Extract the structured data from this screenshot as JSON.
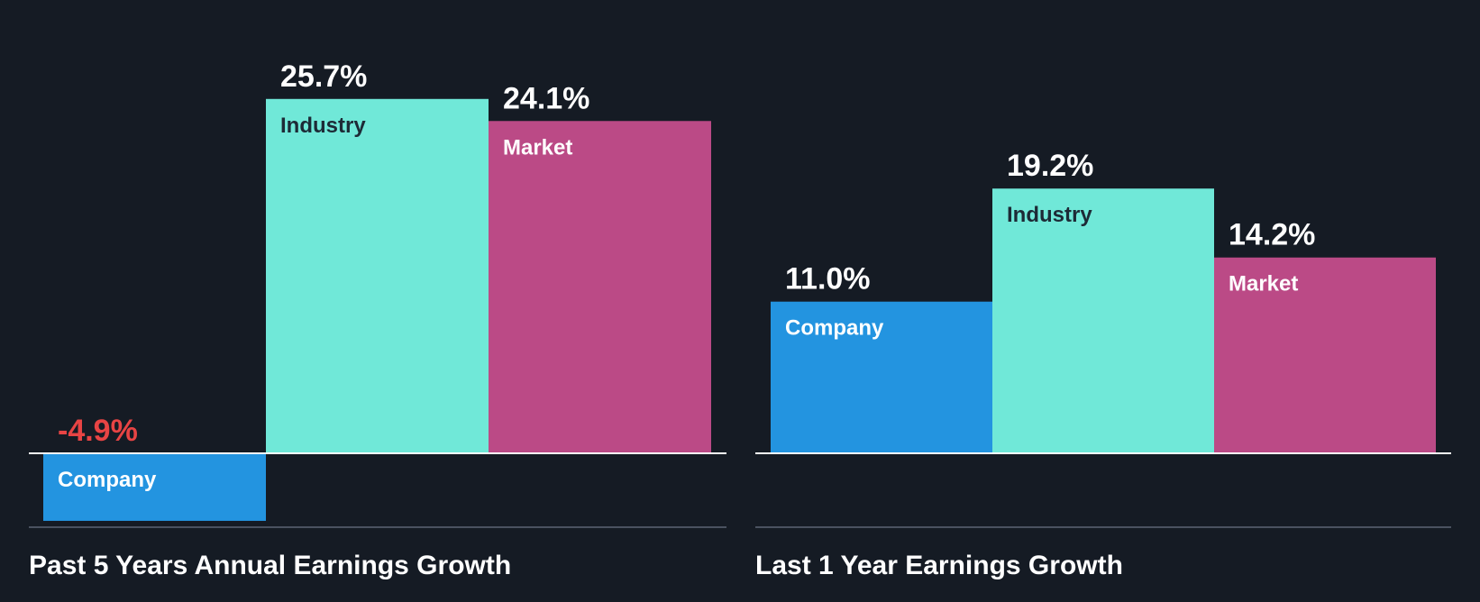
{
  "chart_data": [
    {
      "type": "bar",
      "title": "Past 5 Years Annual Earnings Growth",
      "categories": [
        "Company",
        "Industry",
        "Market"
      ],
      "values": [
        -4.9,
        25.7,
        24.1
      ],
      "value_labels": [
        "-4.9%",
        "25.7%",
        "24.1%"
      ],
      "unit": "%",
      "ylim": [
        -5.4,
        27.2
      ],
      "grid": false,
      "colors": [
        "#2394e0",
        "#70e8d8",
        "#bb4a86"
      ],
      "negative_value_color": "#e84444"
    },
    {
      "type": "bar",
      "title": "Last 1 Year Earnings Growth",
      "categories": [
        "Company",
        "Industry",
        "Market"
      ],
      "values": [
        11.0,
        19.2,
        14.2
      ],
      "value_labels": [
        "11.0%",
        "19.2%",
        "14.2%"
      ],
      "unit": "%",
      "ylim": [
        -5.4,
        20.7
      ],
      "grid": false,
      "colors": [
        "#2394e0",
        "#70e8d8",
        "#bb4a86"
      ],
      "negative_value_color": "#e84444"
    }
  ],
  "colors": {
    "background": "#151b24",
    "text": "#ffffff",
    "dark_label": "#1d2a36",
    "axis": "#ffffff",
    "baseline": "#4a5260"
  }
}
